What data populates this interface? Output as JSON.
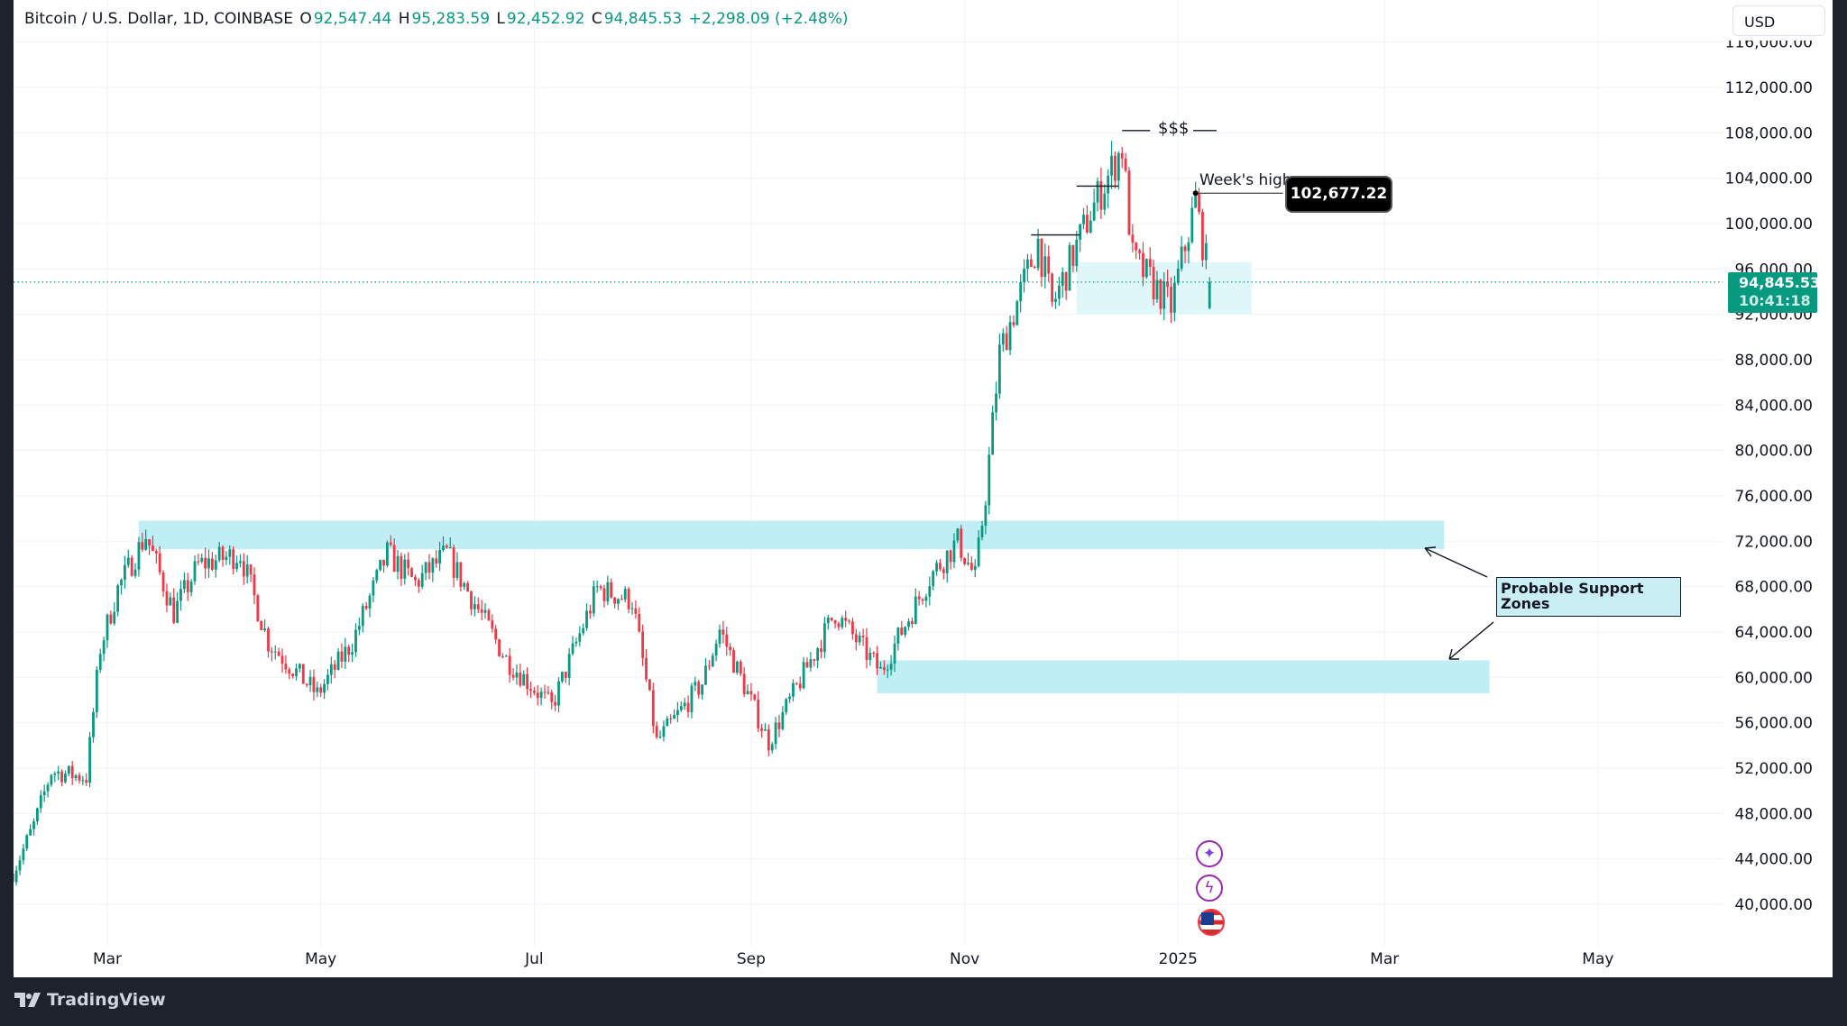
{
  "legend": {
    "symbol": "Bitcoin / U.S. Dollar, 1D, COINBASE",
    "open_label": "O",
    "open": "92,547.44",
    "high_label": "H",
    "high": "95,283.59",
    "low_label": "L",
    "low": "92,452.92",
    "close_label": "C",
    "close": "94,845.53",
    "change": "+2,298.09 (+2.48%)"
  },
  "currency_button": "USD",
  "price_badge": {
    "price": "94,845.53",
    "countdown": "10:41:18"
  },
  "annotations": {
    "sss": "$$$",
    "week_high_label": "Week's high",
    "week_high_value": "102,677.22",
    "support_label": "Probable Support Zones"
  },
  "footer": {
    "brand": "TradingView"
  },
  "events": [
    {
      "icon": "sparkle-icon"
    },
    {
      "icon": "lightning-icon"
    },
    {
      "icon": "us-flag-icon"
    }
  ],
  "colors": {
    "up": "#089981",
    "down": "#f23645",
    "zone": "#bfeef5",
    "zone_light": "#e0f7fa"
  },
  "chart_data": {
    "type": "candlestick",
    "title": "Bitcoin / U.S. Dollar, 1D, COINBASE",
    "ylim": [
      38000,
      116000
    ],
    "y_ticks": [
      "116,000.00",
      "112,000.00",
      "108,000.00",
      "104,000.00",
      "100,000.00",
      "96,000.00",
      "92,000.00",
      "88,000.00",
      "84,000.00",
      "80,000.00",
      "76,000.00",
      "72,000.00",
      "68,000.00",
      "64,000.00",
      "60,000.00",
      "56,000.00",
      "52,000.00",
      "48,000.00",
      "44,000.00",
      "40,000.00"
    ],
    "y_tick_values": [
      116000,
      112000,
      108000,
      104000,
      100000,
      96000,
      92000,
      88000,
      84000,
      80000,
      76000,
      72000,
      68000,
      64000,
      60000,
      56000,
      52000,
      48000,
      44000,
      40000
    ],
    "x_ticks": [
      {
        "label": "Mar",
        "date": "2024-03-01"
      },
      {
        "label": "May",
        "date": "2024-05-01"
      },
      {
        "label": "Jul",
        "date": "2024-07-01"
      },
      {
        "label": "Sep",
        "date": "2024-09-01"
      },
      {
        "label": "Nov",
        "date": "2024-11-01"
      },
      {
        "label": "2025",
        "date": "2025-01-01"
      },
      {
        "label": "Mar",
        "date": "2025-03-01"
      },
      {
        "label": "May",
        "date": "2025-05-01"
      }
    ],
    "close_path": [
      [
        "2024-02-03",
        42700
      ],
      [
        "2024-02-09",
        47000
      ],
      [
        "2024-02-14",
        51700
      ],
      [
        "2024-02-24",
        51200
      ],
      [
        "2024-02-28",
        62600
      ],
      [
        "2024-03-04",
        67800
      ],
      [
        "2024-03-12",
        72500
      ],
      [
        "2024-03-20",
        65700
      ],
      [
        "2024-03-27",
        69900
      ],
      [
        "2024-04-08",
        70900
      ],
      [
        "2024-04-16",
        63100
      ],
      [
        "2024-04-30",
        58500
      ],
      [
        "2024-05-10",
        63100
      ],
      [
        "2024-05-20",
        70900
      ],
      [
        "2024-05-28",
        68300
      ],
      [
        "2024-06-06",
        70900
      ],
      [
        "2024-06-23",
        61600
      ],
      [
        "2024-07-06",
        57400
      ],
      [
        "2024-07-19",
        67800
      ],
      [
        "2024-07-29",
        66800
      ],
      [
        "2024-08-05",
        54300
      ],
      [
        "2024-08-18",
        59500
      ],
      [
        "2024-08-23",
        64200
      ],
      [
        "2024-09-06",
        54300
      ],
      [
        "2024-09-25",
        65700
      ],
      [
        "2024-10-08",
        60500
      ],
      [
        "2024-10-22",
        68800
      ],
      [
        "2024-10-30",
        72000
      ],
      [
        "2024-11-04",
        68800
      ],
      [
        "2024-11-07",
        76100
      ],
      [
        "2024-11-11",
        88600
      ],
      [
        "2024-11-22",
        98400
      ],
      [
        "2024-11-26",
        92700
      ],
      [
        "2024-12-07",
        101000
      ],
      [
        "2024-12-16",
        106700
      ],
      [
        "2024-12-19",
        96900
      ],
      [
        "2024-12-30",
        92700
      ],
      [
        "2025-01-06",
        102000
      ],
      [
        "2025-01-10",
        94845.53
      ]
    ],
    "last_candle": {
      "open": 92547.44,
      "high": 95283.59,
      "low": 92452.92,
      "close": 94845.53
    },
    "current_price": 94845.53,
    "zones": [
      {
        "name": "support-zone-upper",
        "from": "2024-03-10",
        "to": "2025-03-18",
        "low": 71300,
        "high": 73800
      },
      {
        "name": "support-zone-lower",
        "from": "2024-10-07",
        "to": "2025-03-31",
        "low": 58600,
        "high": 61500
      },
      {
        "name": "consolidation-zone",
        "from": "2024-12-03",
        "to": "2025-01-22",
        "low": 92000,
        "high": 96600
      }
    ],
    "levels": [
      {
        "name": "level-100k",
        "price": 99000,
        "from": "2024-11-20",
        "to": "2024-12-04"
      },
      {
        "name": "level-103k",
        "price": 103300,
        "from": "2024-12-03",
        "to": "2024-12-15"
      },
      {
        "name": "level-108k",
        "price": 108200,
        "from": "2024-12-16",
        "to": "2024-12-24"
      },
      {
        "name": "level-week-high",
        "price": 102677.22,
        "from": "2025-01-06",
        "to": "2025-01-31"
      }
    ]
  }
}
